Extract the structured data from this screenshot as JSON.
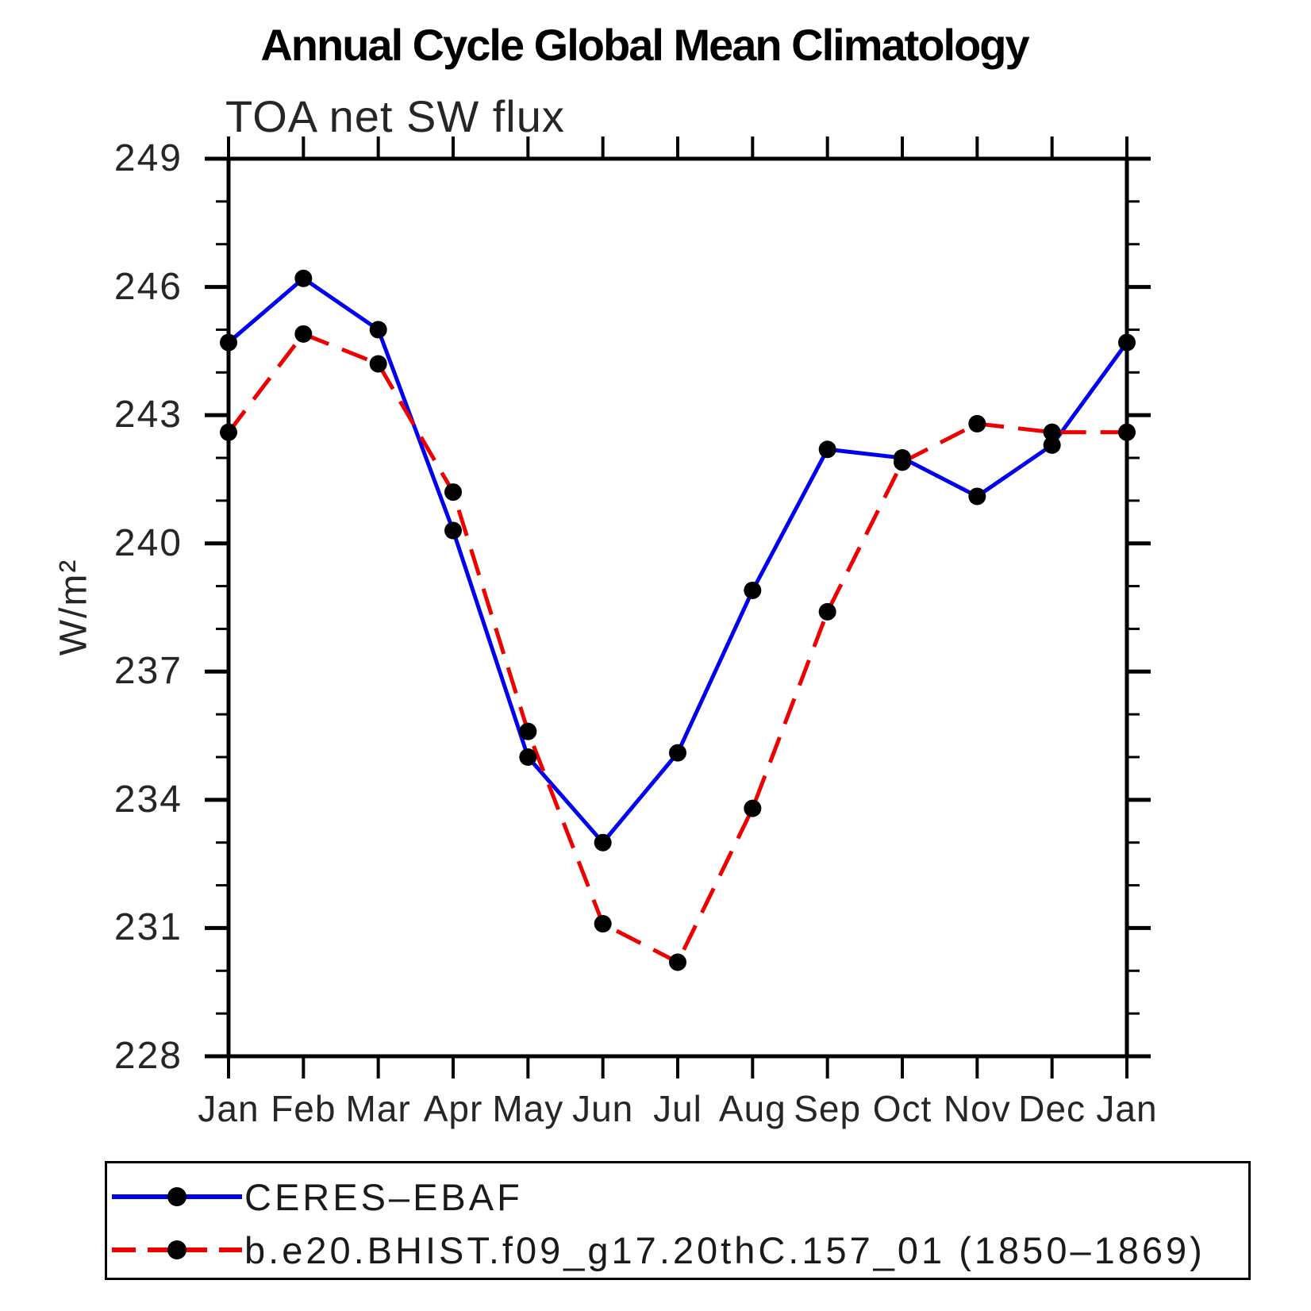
{
  "title": "Annual Cycle Global Mean Climatology",
  "chart_data": {
    "type": "line",
    "title": "Annual Cycle Global Mean Climatology",
    "subtitle": "TOA net SW flux",
    "ylabel": "W/m²",
    "xlabel": "",
    "categories": [
      "Jan",
      "Feb",
      "Mar",
      "Apr",
      "May",
      "Jun",
      "Jul",
      "Aug",
      "Sep",
      "Oct",
      "Nov",
      "Dec",
      "Jan"
    ],
    "y_axis": {
      "min": 228,
      "max": 249,
      "major_step": 3,
      "minor_step": 1,
      "tick_labels": [
        249,
        246,
        243,
        240,
        237,
        234,
        231,
        228
      ]
    },
    "grid": false,
    "legend_position": "bottom",
    "series": [
      {
        "name": "CERES–EBAF",
        "color": "#0000ee",
        "line_style": "solid",
        "marker": "circle",
        "marker_color": "#000000",
        "values": [
          244.7,
          246.2,
          245.0,
          240.3,
          235.0,
          233.0,
          235.1,
          238.9,
          242.2,
          242.0,
          241.1,
          242.3,
          244.7
        ]
      },
      {
        "name": "b.e20.BHIST.f09_g17.20thC.157_01 (1850–1869)",
        "color": "#ee0000",
        "line_style": "dashed",
        "marker": "circle",
        "marker_color": "#000000",
        "values": [
          242.6,
          244.9,
          244.2,
          241.2,
          235.6,
          231.1,
          230.2,
          233.8,
          238.4,
          241.9,
          242.8,
          242.6,
          242.6
        ]
      }
    ]
  }
}
